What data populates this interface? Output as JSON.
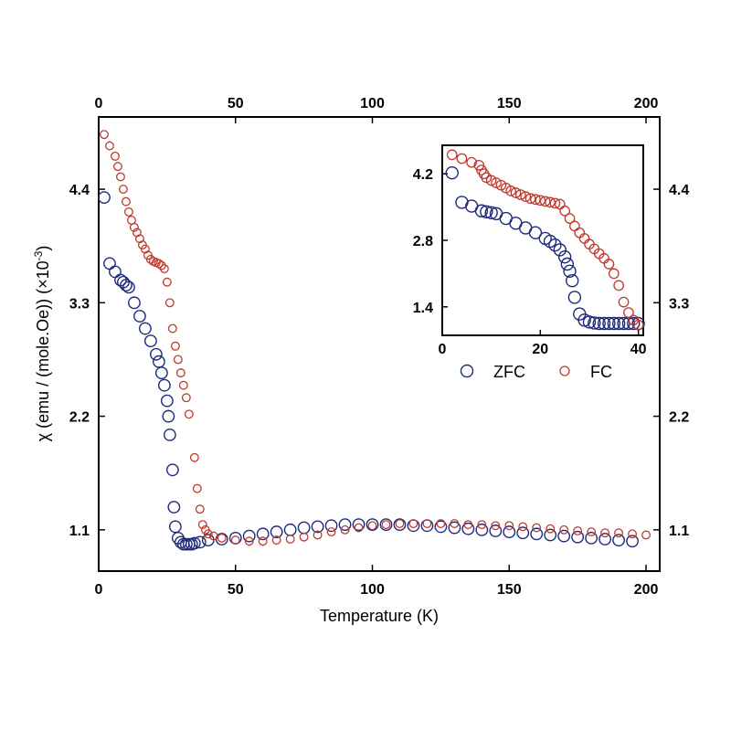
{
  "chart_data": [
    {
      "type": "scatter",
      "title": "",
      "xlabel": "Temperature (K)",
      "ylabel_main": "χ (emu / (mole.Oe)) (×10",
      "ylabel_sup": "-3",
      "ylabel_tail": ")",
      "xlim": [
        0,
        205
      ],
      "ylim": [
        0.7,
        5.1
      ],
      "x_ticks": [
        0,
        50,
        100,
        150,
        200
      ],
      "x_tick_labels": [
        "0",
        "50",
        "100",
        "150",
        "200"
      ],
      "y_ticks": [
        1.1,
        2.2,
        3.3,
        4.4
      ],
      "y_tick_labels": [
        "1.1",
        "2.2",
        "3.3",
        "4.4"
      ],
      "legend": "inset",
      "series": [
        {
          "name": "ZFC",
          "color": "#1f2a7a",
          "marker": "open-circle-large",
          "points": [
            [
              2,
              4.32
            ],
            [
              4,
              3.68
            ],
            [
              6,
              3.6
            ],
            [
              8,
              3.52
            ],
            [
              9,
              3.5
            ],
            [
              10,
              3.47
            ],
            [
              11,
              3.45
            ],
            [
              13,
              3.3
            ],
            [
              15,
              3.17
            ],
            [
              17,
              3.05
            ],
            [
              19,
              2.93
            ],
            [
              21,
              2.8
            ],
            [
              22,
              2.73
            ],
            [
              23,
              2.62
            ],
            [
              24,
              2.5
            ],
            [
              25,
              2.35
            ],
            [
              25.5,
              2.2
            ],
            [
              26,
              2.02
            ],
            [
              27,
              1.68
            ],
            [
              27.5,
              1.32
            ],
            [
              28,
              1.13
            ],
            [
              29,
              1.02
            ],
            [
              30,
              0.98
            ],
            [
              31,
              0.96
            ],
            [
              32,
              0.96
            ],
            [
              33,
              0.96
            ],
            [
              34,
              0.96
            ],
            [
              35,
              0.97
            ],
            [
              37,
              0.98
            ],
            [
              40,
              1.0
            ],
            [
              45,
              1.01
            ],
            [
              50,
              1.02
            ],
            [
              55,
              1.04
            ],
            [
              60,
              1.06
            ],
            [
              65,
              1.08
            ],
            [
              70,
              1.1
            ],
            [
              75,
              1.12
            ],
            [
              80,
              1.13
            ],
            [
              85,
              1.14
            ],
            [
              90,
              1.15
            ],
            [
              95,
              1.15
            ],
            [
              100,
              1.15
            ],
            [
              105,
              1.15
            ],
            [
              110,
              1.15
            ],
            [
              115,
              1.14
            ],
            [
              120,
              1.14
            ],
            [
              125,
              1.13
            ],
            [
              130,
              1.12
            ],
            [
              135,
              1.11
            ],
            [
              140,
              1.1
            ],
            [
              145,
              1.09
            ],
            [
              150,
              1.08
            ],
            [
              155,
              1.07
            ],
            [
              160,
              1.06
            ],
            [
              165,
              1.05
            ],
            [
              170,
              1.04
            ],
            [
              175,
              1.03
            ],
            [
              180,
              1.02
            ],
            [
              185,
              1.01
            ],
            [
              190,
              1.0
            ],
            [
              195,
              0.99
            ]
          ]
        },
        {
          "name": "FC",
          "color": "#c0392b",
          "marker": "open-circle-small",
          "points": [
            [
              2,
              4.93
            ],
            [
              4,
              4.82
            ],
            [
              6,
              4.72
            ],
            [
              7,
              4.62
            ],
            [
              8,
              4.52
            ],
            [
              9,
              4.4
            ],
            [
              10,
              4.28
            ],
            [
              11,
              4.18
            ],
            [
              12,
              4.1
            ],
            [
              13,
              4.03
            ],
            [
              14,
              3.98
            ],
            [
              15,
              3.92
            ],
            [
              16,
              3.86
            ],
            [
              17,
              3.82
            ],
            [
              18,
              3.76
            ],
            [
              19,
              3.72
            ],
            [
              20,
              3.7
            ],
            [
              21,
              3.69
            ],
            [
              22,
              3.68
            ],
            [
              23,
              3.66
            ],
            [
              24,
              3.63
            ],
            [
              25,
              3.5
            ],
            [
              26,
              3.3
            ],
            [
              27,
              3.05
            ],
            [
              28,
              2.88
            ],
            [
              29,
              2.75
            ],
            [
              30,
              2.62
            ],
            [
              31,
              2.5
            ],
            [
              32,
              2.38
            ],
            [
              33,
              2.22
            ],
            [
              35,
              1.8
            ],
            [
              36,
              1.5
            ],
            [
              37,
              1.3
            ],
            [
              38,
              1.15
            ],
            [
              39,
              1.1
            ],
            [
              40,
              1.06
            ],
            [
              42,
              1.04
            ],
            [
              45,
              1.02
            ],
            [
              50,
              1.0
            ],
            [
              55,
              0.99
            ],
            [
              60,
              0.99
            ],
            [
              65,
              1.0
            ],
            [
              70,
              1.01
            ],
            [
              75,
              1.03
            ],
            [
              80,
              1.05
            ],
            [
              85,
              1.08
            ],
            [
              90,
              1.1
            ],
            [
              95,
              1.12
            ],
            [
              100,
              1.14
            ],
            [
              105,
              1.15
            ],
            [
              110,
              1.16
            ],
            [
              115,
              1.16
            ],
            [
              120,
              1.16
            ],
            [
              125,
              1.16
            ],
            [
              130,
              1.16
            ],
            [
              135,
              1.15
            ],
            [
              140,
              1.15
            ],
            [
              145,
              1.14
            ],
            [
              150,
              1.14
            ],
            [
              155,
              1.13
            ],
            [
              160,
              1.12
            ],
            [
              165,
              1.11
            ],
            [
              170,
              1.1
            ],
            [
              175,
              1.09
            ],
            [
              180,
              1.08
            ],
            [
              185,
              1.07
            ],
            [
              190,
              1.07
            ],
            [
              195,
              1.06
            ],
            [
              200,
              1.05
            ]
          ]
        }
      ]
    },
    {
      "type": "scatter",
      "title": "",
      "xlabel": "",
      "ylabel": "",
      "xlim": [
        0,
        41
      ],
      "ylim": [
        0.8,
        4.8
      ],
      "x_ticks": [
        0,
        20,
        40
      ],
      "x_tick_labels": [
        "0",
        "20",
        "40"
      ],
      "y_ticks": [
        1.4,
        2.8,
        4.2
      ],
      "y_tick_labels": [
        "1.4",
        "2.8",
        "4.2"
      ],
      "legend": "below-inset",
      "legend_labels": [
        "ZFC",
        "FC"
      ],
      "series": [
        {
          "name": "ZFC",
          "color": "#1f2a7a",
          "points": [
            [
              2,
              4.22
            ],
            [
              4,
              3.6
            ],
            [
              6,
              3.52
            ],
            [
              8,
              3.42
            ],
            [
              9,
              3.4
            ],
            [
              10,
              3.38
            ],
            [
              11,
              3.36
            ],
            [
              13,
              3.26
            ],
            [
              15,
              3.16
            ],
            [
              17,
              3.06
            ],
            [
              19,
              2.96
            ],
            [
              21,
              2.84
            ],
            [
              22,
              2.78
            ],
            [
              23,
              2.7
            ],
            [
              24,
              2.6
            ],
            [
              25,
              2.45
            ],
            [
              25.5,
              2.3
            ],
            [
              26,
              2.15
            ],
            [
              26.5,
              1.95
            ],
            [
              27,
              1.6
            ],
            [
              28,
              1.25
            ],
            [
              29,
              1.12
            ],
            [
              30,
              1.08
            ],
            [
              31,
              1.06
            ],
            [
              32,
              1.05
            ],
            [
              33,
              1.05
            ],
            [
              34,
              1.05
            ],
            [
              35,
              1.05
            ],
            [
              36,
              1.05
            ],
            [
              37,
              1.05
            ],
            [
              38,
              1.05
            ],
            [
              39,
              1.05
            ],
            [
              40,
              1.05
            ]
          ]
        },
        {
          "name": "FC",
          "color": "#c0392b",
          "points": [
            [
              2,
              4.6
            ],
            [
              4,
              4.52
            ],
            [
              6,
              4.44
            ],
            [
              7.5,
              4.38
            ],
            [
              8,
              4.28
            ],
            [
              8.5,
              4.2
            ],
            [
              9,
              4.12
            ],
            [
              10,
              4.06
            ],
            [
              11,
              4.01
            ],
            [
              12,
              3.96
            ],
            [
              13,
              3.9
            ],
            [
              14,
              3.84
            ],
            [
              15,
              3.8
            ],
            [
              16,
              3.76
            ],
            [
              17,
              3.72
            ],
            [
              18,
              3.68
            ],
            [
              19,
              3.66
            ],
            [
              20,
              3.64
            ],
            [
              21,
              3.62
            ],
            [
              22,
              3.6
            ],
            [
              23,
              3.58
            ],
            [
              24,
              3.56
            ],
            [
              25,
              3.42
            ],
            [
              26,
              3.26
            ],
            [
              27,
              3.1
            ],
            [
              28,
              2.96
            ],
            [
              29,
              2.84
            ],
            [
              30,
              2.72
            ],
            [
              31,
              2.62
            ],
            [
              32,
              2.52
            ],
            [
              33,
              2.42
            ],
            [
              34,
              2.3
            ],
            [
              35,
              2.1
            ],
            [
              36,
              1.85
            ],
            [
              37,
              1.5
            ],
            [
              38,
              1.28
            ],
            [
              39,
              1.12
            ],
            [
              40,
              1.02
            ]
          ]
        }
      ]
    }
  ]
}
